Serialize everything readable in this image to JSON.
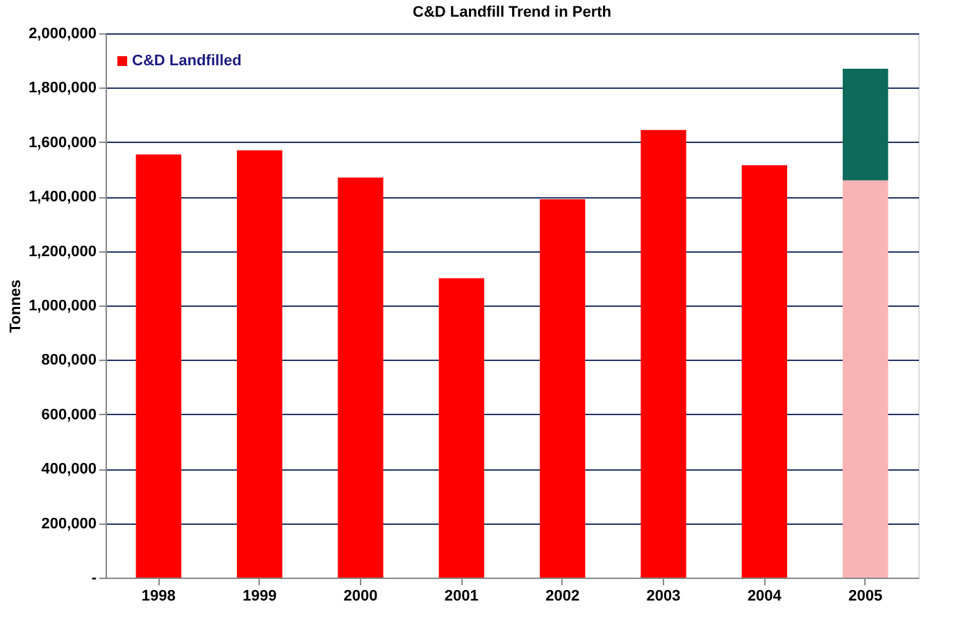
{
  "chart_data": {
    "type": "bar",
    "title": "C&D Landfill Trend in Perth",
    "ylabel": "Tonnes",
    "categories": [
      "1998",
      "1999",
      "2000",
      "2001",
      "2002",
      "2003",
      "2004",
      "2005"
    ],
    "stacked": true,
    "series": [
      {
        "name": "C&D Landfilled",
        "color": "#ff0000",
        "colors": [
          "#ff0000",
          "#ff0000",
          "#ff0000",
          "#ff0000",
          "#ff0000",
          "#ff0000",
          "#ff0000",
          "#f8b4b4"
        ],
        "values": [
          1555000,
          1570000,
          1470000,
          1100000,
          1390000,
          1645000,
          1515000,
          1460000
        ]
      },
      {
        "color": "#0e6a5a",
        "values": [
          null,
          null,
          null,
          null,
          null,
          null,
          null,
          410000
        ]
      }
    ],
    "ylim": [
      0,
      2000000
    ],
    "yticks": [
      {
        "value": 0,
        "label": "-"
      },
      {
        "value": 200000,
        "label": "200,000"
      },
      {
        "value": 400000,
        "label": "400,000"
      },
      {
        "value": 600000,
        "label": "600,000"
      },
      {
        "value": 800000,
        "label": "800,000"
      },
      {
        "value": 1000000,
        "label": "1,000,000"
      },
      {
        "value": 1200000,
        "label": "1,200,000"
      },
      {
        "value": 1400000,
        "label": "1,400,000"
      },
      {
        "value": 1600000,
        "label": "1,600,000"
      },
      {
        "value": 1800000,
        "label": "1,800,000"
      },
      {
        "value": 2000000,
        "label": "2,000,000"
      }
    ],
    "grid": "y",
    "legend": "top left"
  }
}
